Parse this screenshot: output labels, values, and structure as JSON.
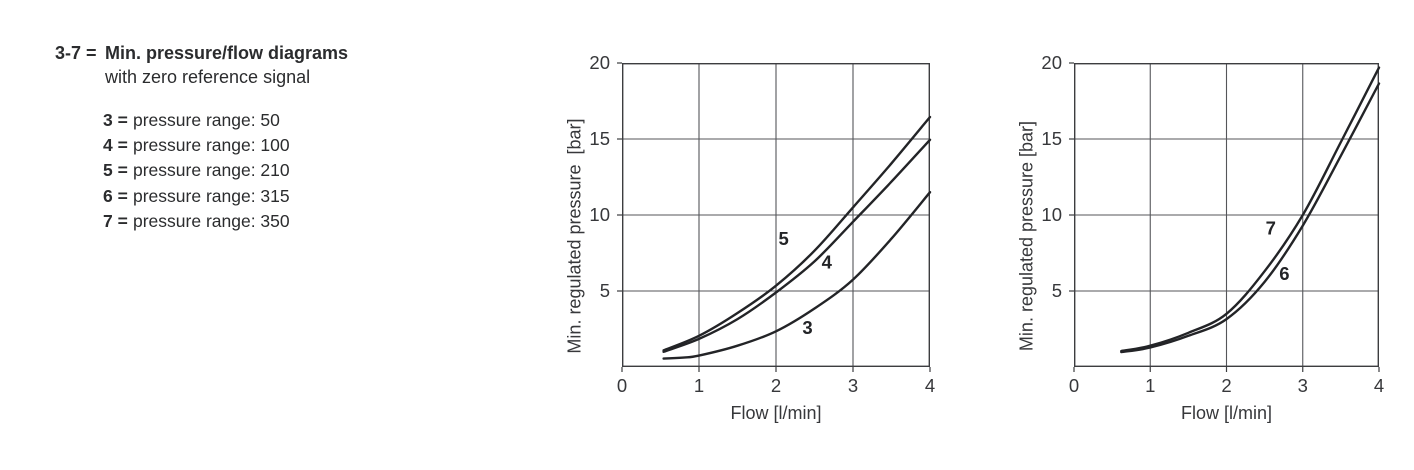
{
  "page": {
    "background": "#ffffff"
  },
  "legend_block": {
    "code": "3-7 =",
    "title": "Min. pressure/flow diagrams",
    "subtitle": "with zero reference signal",
    "items": [
      {
        "code": "3 =",
        "label": "pressure range: 50"
      },
      {
        "code": "4 =",
        "label": "pressure range: 100"
      },
      {
        "code": "5 =",
        "label": "pressure range: 210"
      },
      {
        "code": "6 =",
        "label": "pressure range: 315"
      },
      {
        "code": "7 =",
        "label": "pressure range: 350"
      }
    ]
  },
  "colors": {
    "curve": "#232427",
    "border": "#3c3d40",
    "grid": "#55565a",
    "text": "#2b2c2e"
  },
  "chart_data": [
    {
      "type": "line",
      "title": "",
      "xlabel": "Flow [l/min]",
      "ylabel": "Min. regulated pressure  [bar]",
      "xlim": [
        0,
        4
      ],
      "ylim": [
        0,
        20
      ],
      "xticks": [
        0,
        1,
        2,
        3,
        4
      ],
      "yticks": [
        5,
        10,
        15,
        20
      ],
      "grid": true,
      "legend_position": "inline-curve-labels",
      "series": [
        {
          "name": "5",
          "label_pos": [
            2.1,
            8.45
          ],
          "points": [
            [
              0.54,
              1.1
            ],
            [
              1,
              2.05
            ],
            [
              1.5,
              3.55
            ],
            [
              2,
              5.35
            ],
            [
              2.5,
              7.65
            ],
            [
              3,
              10.5
            ],
            [
              3.5,
              13.4
            ],
            [
              4,
              16.45
            ]
          ]
        },
        {
          "name": "4",
          "label_pos": [
            2.66,
            6.9
          ],
          "points": [
            [
              0.54,
              1.0
            ],
            [
              1,
              1.85
            ],
            [
              1.5,
              3.15
            ],
            [
              2,
              4.9
            ],
            [
              2.5,
              6.95
            ],
            [
              3,
              9.55
            ],
            [
              3.5,
              12.2
            ],
            [
              4,
              14.95
            ]
          ]
        },
        {
          "name": "3",
          "label_pos": [
            2.41,
            2.6
          ],
          "points": [
            [
              0.54,
              0.55
            ],
            [
              0.8,
              0.62
            ],
            [
              1,
              0.75
            ],
            [
              1.5,
              1.4
            ],
            [
              2,
              2.35
            ],
            [
              2.5,
              3.85
            ],
            [
              3,
              5.75
            ],
            [
              3.5,
              8.45
            ],
            [
              4,
              11.5
            ]
          ]
        }
      ]
    },
    {
      "type": "line",
      "title": "",
      "xlabel": "Flow [l/min]",
      "ylabel": "Min. regulated pressure [bar]",
      "xlim": [
        0,
        4
      ],
      "ylim": [
        0,
        20
      ],
      "xticks": [
        0,
        1,
        2,
        3,
        4
      ],
      "yticks": [
        5,
        10,
        15,
        20
      ],
      "grid": true,
      "legend_position": "inline-curve-labels",
      "series": [
        {
          "name": "7",
          "label_pos": [
            2.58,
            9.15
          ],
          "points": [
            [
              0.62,
              1.05
            ],
            [
              1,
              1.4
            ],
            [
              1.5,
              2.25
            ],
            [
              2,
              3.5
            ],
            [
              2.5,
              6.3
            ],
            [
              3,
              10.0
            ],
            [
              3.5,
              14.8
            ],
            [
              4,
              19.7
            ]
          ]
        },
        {
          "name": "6",
          "label_pos": [
            2.76,
            6.15
          ],
          "points": [
            [
              0.62,
              0.98
            ],
            [
              1,
              1.28
            ],
            [
              1.5,
              2.05
            ],
            [
              2,
              3.15
            ],
            [
              2.5,
              5.6
            ],
            [
              3,
              9.3
            ],
            [
              3.5,
              13.9
            ],
            [
              4,
              18.65
            ]
          ]
        }
      ]
    }
  ]
}
